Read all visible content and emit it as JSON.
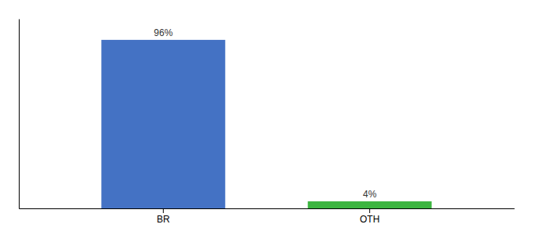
{
  "chart_data": {
    "type": "bar",
    "categories": [
      "BR",
      "OTH"
    ],
    "values": [
      96,
      4
    ],
    "value_labels": [
      "96%",
      "4%"
    ],
    "colors": [
      "#4472c4",
      "#3cb540"
    ],
    "ylim": [
      0,
      108
    ],
    "data_labels": true,
    "tick_labels": "x"
  }
}
